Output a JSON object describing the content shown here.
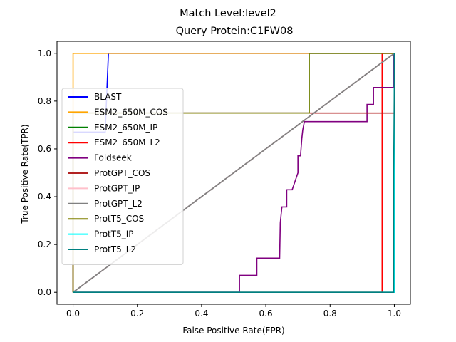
{
  "chart_data": {
    "type": "line",
    "title": "Match Level:level2",
    "subtitle": "Query Protein:C1FW08",
    "xlabel": "False Positive Rate(FPR)",
    "ylabel": "True Positive Rate(TPR)",
    "xlim": [
      -0.05,
      1.05
    ],
    "ylim": [
      -0.05,
      1.05
    ],
    "xticks": [
      0.0,
      0.2,
      0.4,
      0.6,
      0.8,
      1.0
    ],
    "yticks": [
      0.0,
      0.2,
      0.4,
      0.6,
      0.8,
      1.0
    ],
    "xtick_labels": [
      "0.0",
      "0.2",
      "0.4",
      "0.6",
      "0.8",
      "1.0"
    ],
    "ytick_labels": [
      "0.0",
      "0.2",
      "0.4",
      "0.6",
      "0.8",
      "1.0"
    ],
    "grid": false,
    "legend_position": "center-left",
    "diagonal": {
      "x": [
        0,
        1
      ],
      "y": [
        0,
        1
      ],
      "color": "#808080",
      "style": "dashed"
    },
    "series": [
      {
        "name": "BLAST",
        "color": "#0000ff",
        "x": [
          0,
          0,
          0.1,
          0.11,
          0.11,
          1
        ],
        "y": [
          0,
          0.67,
          0.67,
          1.0,
          1.0,
          1.0
        ]
      },
      {
        "name": "ESM2_650M_COS",
        "color": "#ffa500",
        "x": [
          0,
          0,
          1
        ],
        "y": [
          0,
          1.0,
          1.0
        ]
      },
      {
        "name": "ESM2_650M_IP",
        "color": "#008000",
        "x": [
          0,
          0,
          0.735,
          0.735,
          1,
          1
        ],
        "y": [
          0,
          0.75,
          0.75,
          1.0,
          1.0,
          1.0
        ]
      },
      {
        "name": "ESM2_650M_L2",
        "color": "#ff0000",
        "x": [
          0,
          0.962,
          0.962,
          1,
          1
        ],
        "y": [
          0,
          0,
          1.0,
          1.0,
          1.0
        ]
      },
      {
        "name": "Foldseek",
        "color": "#800080",
        "x": [
          0,
          0.518,
          0.518,
          0.572,
          0.572,
          0.643,
          0.645,
          0.65,
          0.65,
          0.665,
          0.665,
          0.682,
          0.682,
          0.7,
          0.7,
          0.708,
          0.708,
          0.712,
          0.715,
          0.72,
          0.72,
          0.915,
          0.915,
          0.935,
          0.935,
          0.998,
          0.998
        ],
        "y": [
          0,
          0,
          0.071,
          0.071,
          0.143,
          0.143,
          0.29,
          0.357,
          0.357,
          0.357,
          0.429,
          0.429,
          0.429,
          0.5,
          0.571,
          0.571,
          0.571,
          0.643,
          0.68,
          0.714,
          0.714,
          0.714,
          0.786,
          0.786,
          0.857,
          0.857,
          1.0
        ]
      },
      {
        "name": "ProtGPT_COS",
        "color": "#b22222",
        "x": [
          0,
          0,
          1
        ],
        "y": [
          0,
          0.75,
          0.75
        ]
      },
      {
        "name": "ProtGPT_IP",
        "color": "#ffc0cb",
        "x": [
          0,
          1
        ],
        "y": [
          0,
          1
        ]
      },
      {
        "name": "ProtGPT_L2",
        "color": "#808080",
        "x": [
          0,
          1
        ],
        "y": [
          0,
          1
        ]
      },
      {
        "name": "ProtT5_COS",
        "color": "#808000",
        "x": [
          0,
          0,
          0.735,
          0.735,
          1,
          1
        ],
        "y": [
          0,
          0.75,
          0.75,
          1.0,
          1.0,
          1.0
        ]
      },
      {
        "name": "ProtT5_IP",
        "color": "#00ffff",
        "x": [
          0,
          1,
          1
        ],
        "y": [
          0,
          0,
          1.0
        ]
      },
      {
        "name": "ProtT5_L2",
        "color": "#008080",
        "x": [
          0,
          0.998,
          0.998,
          1,
          1
        ],
        "y": [
          0,
          0,
          0.5,
          0.86,
          1.0
        ]
      }
    ]
  }
}
